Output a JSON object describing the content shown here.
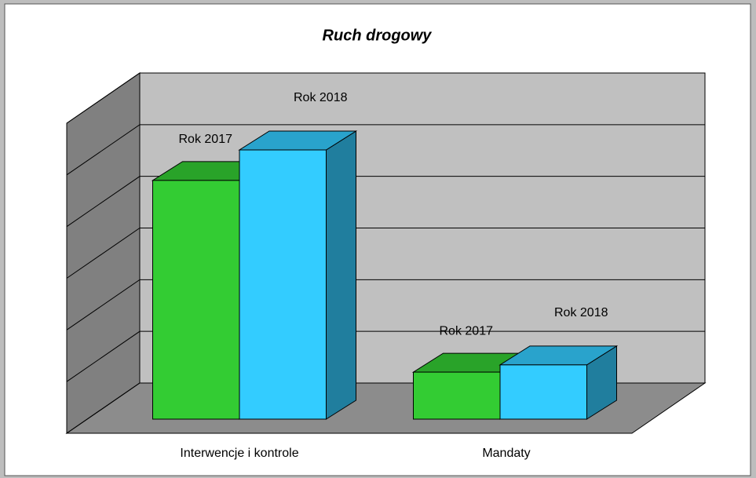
{
  "chart_data": {
    "type": "bar3d",
    "title": "Ruch drogowy",
    "categories": [
      "Interwencje i kontrole",
      "Mandaty"
    ],
    "series": [
      {
        "name": "Rok 2017",
        "color": "#33cc33",
        "values": [
          4.62,
          0.91
        ]
      },
      {
        "name": "Rok 2018",
        "color": "#33ccff",
        "values": [
          5.21,
          1.05
        ]
      }
    ],
    "ylim": [
      0,
      6
    ],
    "yticks": [
      0,
      1,
      2,
      3,
      4,
      5,
      6
    ],
    "grid": true
  }
}
